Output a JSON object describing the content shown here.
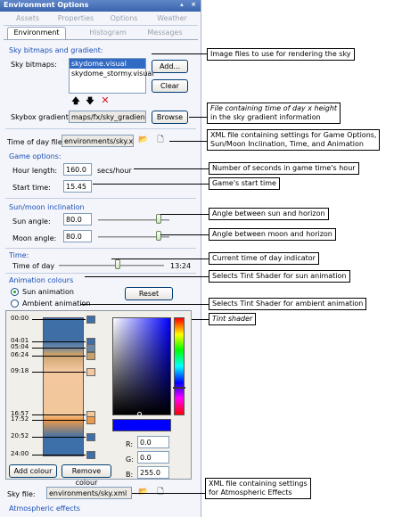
{
  "window": {
    "title": "Environment Options",
    "title_buttons": "▴ ×"
  },
  "tabs_row1": [
    "Assets",
    "Properties",
    "Options",
    "Weather"
  ],
  "tabs_row2": [
    "Environment",
    "Histogram",
    "Messages"
  ],
  "sky": {
    "section_title": "Sky bitmaps and gradient:",
    "bitmaps_label": "Sky bitmaps:",
    "bitmaps": [
      "skydome.visual",
      "skydome_stormy.visual"
    ],
    "selected_index": 0,
    "add_label": "Add...",
    "clear_label": "Clear",
    "gradient_label": "Skybox gradient:",
    "gradient_value": "maps/fx/sky_gradient.t",
    "browse_label": "Browse"
  },
  "time_of_day_file": {
    "label": "Time of day file:",
    "value": "environments/sky.xml"
  },
  "game_options": {
    "section_title": "Game options:",
    "hour_length_label": "Hour length:",
    "hour_length_value": "160.0",
    "hour_length_unit": "secs/hour",
    "start_time_label": "Start time:",
    "start_time_value": "15.45"
  },
  "inclination": {
    "section_title": "Sun/moon inclination",
    "sun_label": "Sun angle:",
    "sun_value": "80.0",
    "sun_slider_fraction": 0.85,
    "moon_label": "Moon angle:",
    "moon_value": "80.0",
    "moon_slider_fraction": 0.85
  },
  "time": {
    "section_title": "Time:",
    "label": "Time of day",
    "value": "13:24",
    "slider_fraction": 0.56
  },
  "animation": {
    "section_title": "Animation colours",
    "sun_label": "Sun animation",
    "ambient_label": "Ambient animation",
    "selected": "sun",
    "reset_label": "Reset",
    "keyframes": [
      {
        "time": "00:00",
        "color": "#3d6fa8"
      },
      {
        "time": "04:01",
        "color": "#3f6ea4"
      },
      {
        "time": "05:04",
        "color": "#6987a9"
      },
      {
        "time": "06:24",
        "color": "#c8a06a"
      },
      {
        "time": "09:18",
        "color": "#f4c79f"
      },
      {
        "time": "16:57",
        "color": "#f2c79a"
      },
      {
        "time": "17:52",
        "color": "#ef9a4a"
      },
      {
        "time": "20:52",
        "color": "#3d6fa8"
      },
      {
        "time": "24:00",
        "color": "#3d6fa8"
      }
    ],
    "rgb": {
      "r_label": "R:",
      "r": "0.0",
      "g_label": "G:",
      "g": "0.0",
      "b_label": "B:",
      "b": "255.0"
    },
    "picked_color": "#0000ff",
    "add_colour_label": "Add colour",
    "remove_colour_label": "Remove colour"
  },
  "sky_file": {
    "label": "Sky file:",
    "value": "environments/sky.xml"
  },
  "atmospheric": {
    "section_title": "Atmospheric effects"
  },
  "callouts": {
    "sky_images": "Image files to use for rendering the sky",
    "gradient_1": "File containing time of day x height",
    "gradient_2": "in the sky gradient information",
    "xml_1": "XML file containing settings for Game Options,",
    "xml_2": "Sun/Moon Inclination, Time, and Animation",
    "seconds": "Number of seconds in game time's hour",
    "start": "Game's start time",
    "sun_angle": "Angle between sun and horizon",
    "moon_angle": "Angle between moon and horizon",
    "time_indicator": "Current time of day indicator",
    "tint_sun": "Selects Tint Shader for sun animation",
    "tint_ambient": "Selects Tint Shader for ambient animation",
    "tint_shader": "Tint shader",
    "atmos_1": "XML file containing settings",
    "atmos_2": "for Atmospheric Effects"
  }
}
